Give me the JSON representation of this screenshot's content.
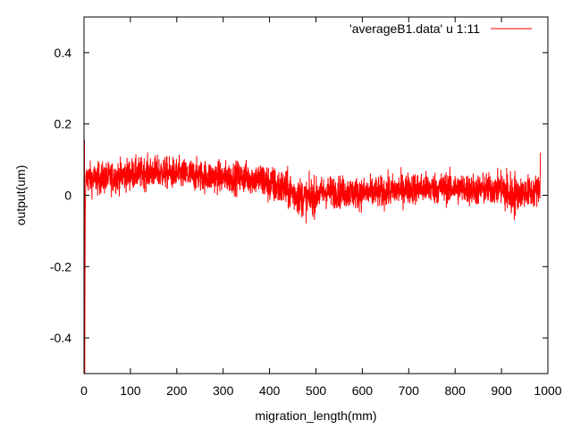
{
  "chart_data": {
    "type": "line",
    "title": "",
    "xlabel": "migration_length(mm)",
    "ylabel": "output(um)",
    "xlim": [
      0,
      1000
    ],
    "ylim": [
      -0.5,
      0.5
    ],
    "xticks": [
      0,
      100,
      200,
      300,
      400,
      500,
      600,
      700,
      800,
      900,
      1000
    ],
    "xtick_labels": [
      "0",
      "100",
      "200",
      "300",
      "400",
      "500",
      "600",
      "700",
      "800",
      "900",
      "1000"
    ],
    "yticks": [
      -0.4,
      -0.2,
      0,
      0.2,
      0.4
    ],
    "ytick_labels": [
      "-0.4",
      "-0.2",
      "0",
      "0.2",
      "0.4"
    ],
    "grid": false,
    "legend_position": "top-right",
    "series": [
      {
        "name": "'averageB1.data' u 1:11",
        "color": "#ff0000",
        "x_range": [
          0,
          985
        ],
        "trend": {
          "x": [
            0,
            3,
            6,
            20,
            60,
            100,
            150,
            200,
            250,
            300,
            350,
            380,
            400,
            430,
            460,
            480,
            500,
            520,
            550,
            600,
            650,
            700,
            750,
            800,
            850,
            900,
            920,
            950,
            970,
            985
          ],
          "y": [
            0.1,
            0.03,
            0.05,
            0.045,
            0.05,
            0.06,
            0.065,
            0.06,
            0.055,
            0.05,
            0.05,
            0.045,
            0.03,
            0.02,
            0.0,
            -0.01,
            0.0,
            0.01,
            0.01,
            0.005,
            0.01,
            0.02,
            0.02,
            0.02,
            0.015,
            0.02,
            0.0,
            0.01,
            0.01,
            0.02
          ]
        },
        "noise_amplitude": 0.022,
        "extremes": [
          {
            "x": 1,
            "y": 0.155
          },
          {
            "x": 1.5,
            "y": -0.5
          },
          {
            "x": 2.5,
            "y": -0.07
          },
          {
            "x": 984,
            "y": 0.12
          }
        ]
      }
    ]
  }
}
